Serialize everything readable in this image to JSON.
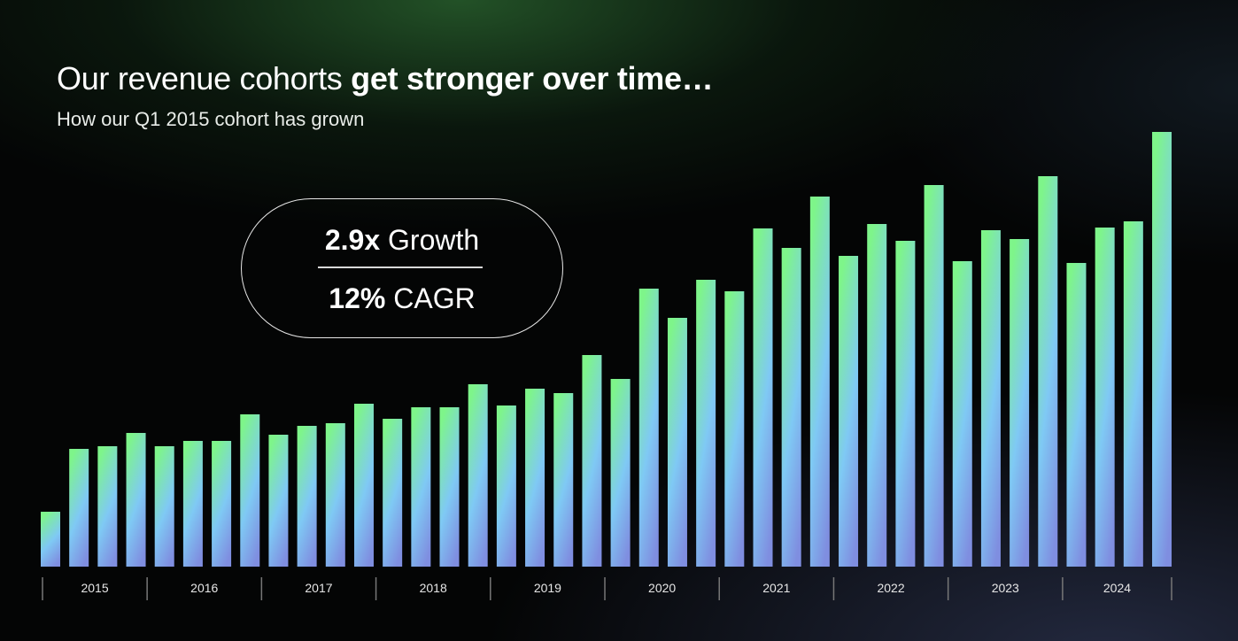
{
  "header": {
    "title_regular": "Our revenue cohorts ",
    "title_bold": "get stronger over time…",
    "subtitle": "How our Q1 2015 cohort has grown"
  },
  "callout": {
    "growth_value": "2.9x",
    "growth_label": " Growth",
    "cagr_value": "12%",
    "cagr_label": " CAGR"
  },
  "chart_data": {
    "type": "bar",
    "title": "",
    "xlabel": "",
    "ylabel": "",
    "y_axis_shown": false,
    "grid": false,
    "ylim": [
      0,
      500
    ],
    "year_labels": [
      "2015",
      "2016",
      "2017",
      "2018",
      "2019",
      "2020",
      "2021",
      "2022",
      "2023",
      "2024"
    ],
    "bars_per_year": 4,
    "values": [
      62,
      133,
      136,
      151,
      136,
      142,
      142,
      172,
      149,
      159,
      162,
      184,
      167,
      180,
      180,
      206,
      182,
      201,
      196,
      239,
      212,
      314,
      281,
      324,
      311,
      382,
      360,
      418,
      351,
      387,
      368,
      431,
      345,
      380,
      370,
      441,
      343,
      383,
      390,
      491
    ],
    "colors": {
      "top": "#7ef58a",
      "middle": "#7fc9f4",
      "bottom": "#7f8ee0",
      "background": "#040505"
    }
  }
}
